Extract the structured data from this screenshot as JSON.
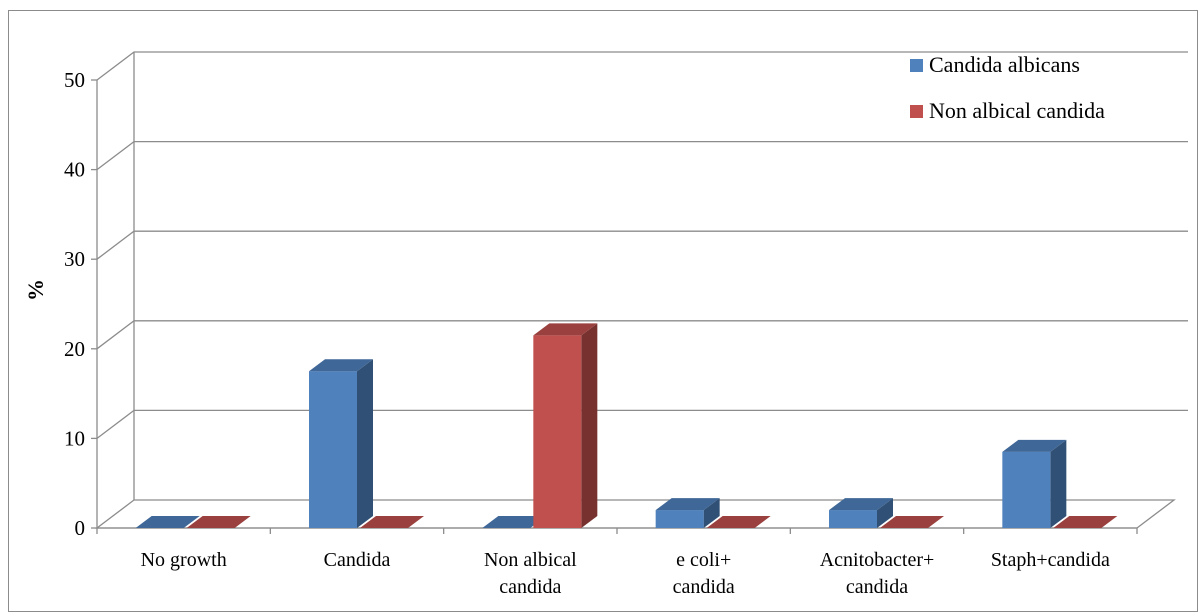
{
  "chart_data": {
    "type": "bar",
    "title": "",
    "xlabel": "",
    "ylabel": "%",
    "ylim": [
      0,
      50
    ],
    "yticks": [
      0,
      10,
      20,
      30,
      40,
      50
    ],
    "grid": true,
    "legend_position": "top-right",
    "categories": [
      [
        "No growth"
      ],
      [
        "Candida"
      ],
      [
        "Non albical",
        "candida"
      ],
      [
        "e coli+",
        "candida"
      ],
      [
        "Acnitobacter+",
        "candida"
      ],
      [
        "Staph+candida"
      ]
    ],
    "series": [
      {
        "name": "Candida albicans",
        "color": "#4f81bd",
        "values": [
          0,
          17.5,
          0,
          2,
          2,
          8.5
        ]
      },
      {
        "name": "Non albical candida",
        "color": "#c0504d",
        "values": [
          0,
          0,
          21.5,
          0,
          0,
          0
        ]
      }
    ]
  }
}
